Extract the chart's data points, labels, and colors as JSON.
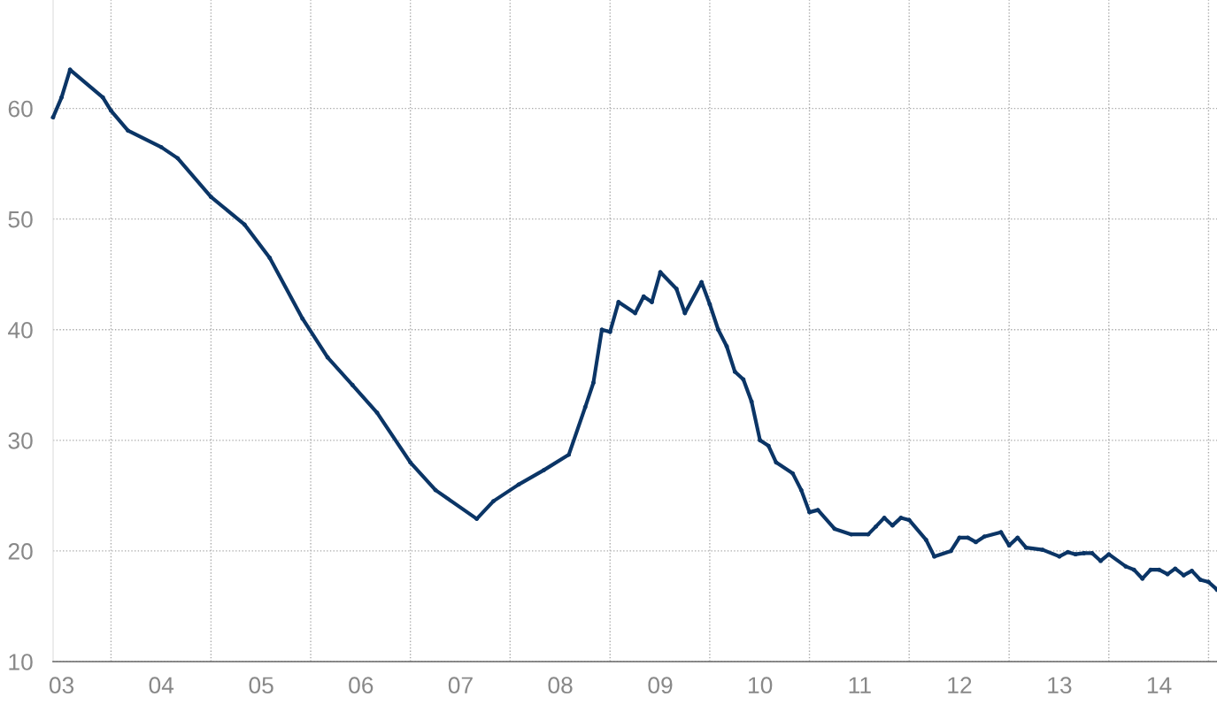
{
  "chart_data": {
    "type": "line",
    "x": [
      "2002-12",
      "2003-01",
      "2003-02",
      "2003-06",
      "2003-07",
      "2003-09",
      "2004-01",
      "2004-03",
      "2004-07",
      "2004-11",
      "2005-02",
      "2005-06",
      "2005-09",
      "2005-12",
      "2006-03",
      "2006-07",
      "2006-10",
      "2007-03",
      "2007-05",
      "2007-08",
      "2007-11",
      "2008-02",
      "2008-04",
      "2008-05",
      "2008-06",
      "2008-07",
      "2008-08",
      "2008-10",
      "2008-11",
      "2008-12",
      "2009-01",
      "2009-03",
      "2009-04",
      "2009-06",
      "2009-07",
      "2009-08",
      "2009-09",
      "2009-10",
      "2009-11",
      "2009-12",
      "2010-01",
      "2010-02",
      "2010-03",
      "2010-05",
      "2010-06",
      "2010-07",
      "2010-08",
      "2010-10",
      "2010-12",
      "2011-02",
      "2011-03",
      "2011-04",
      "2011-05",
      "2011-06",
      "2011-07",
      "2011-09",
      "2011-10",
      "2011-12",
      "2012-01",
      "2012-02",
      "2012-03",
      "2012-04",
      "2012-06",
      "2012-07",
      "2012-08",
      "2012-09",
      "2012-11",
      "2013-01",
      "2013-02",
      "2013-03",
      "2013-04",
      "2013-05",
      "2013-06",
      "2013-07",
      "2013-09",
      "2013-10",
      "2013-11",
      "2013-12",
      "2014-01",
      "2014-02",
      "2014-03",
      "2014-04",
      "2014-05",
      "2014-06",
      "2014-07",
      "2014-08"
    ],
    "series": [
      {
        "color": "#0b3566",
        "values": [
          59.2,
          61,
          63.5,
          61,
          59.8,
          58,
          56.5,
          55.5,
          52,
          49.5,
          46.5,
          41,
          37.5,
          35,
          32.5,
          28,
          25.5,
          22.9,
          24.5,
          26,
          27.3,
          28.7,
          33,
          35.2,
          40,
          39.8,
          42.5,
          41.5,
          43,
          42.5,
          45.2,
          43.7,
          41.5,
          44.3,
          42.3,
          40,
          38.5,
          36.2,
          35.5,
          33.5,
          30,
          29.5,
          28,
          27,
          25.5,
          23.5,
          23.7,
          22,
          21.5,
          21.5,
          22.2,
          23,
          22.3,
          23,
          22.8,
          21,
          19.5,
          20,
          21.2,
          21.2,
          20.8,
          21.3,
          21.7,
          20.5,
          21.2,
          20.3,
          20.1,
          19.5,
          19.9,
          19.7,
          19.8,
          19.8,
          19.1,
          19.7,
          18.6,
          18.3,
          17.5,
          18.3,
          18.3,
          17.9,
          18.4,
          17.8,
          18.2,
          17.4,
          17.2,
          16.5
        ]
      }
    ],
    "xlim": [
      "2002-12",
      "2014-08"
    ],
    "xticks": [
      {
        "value": "2003",
        "label": "03"
      },
      {
        "value": "2004",
        "label": "04"
      },
      {
        "value": "2005",
        "label": "05"
      },
      {
        "value": "2006",
        "label": "06"
      },
      {
        "value": "2007",
        "label": "07"
      },
      {
        "value": "2008",
        "label": "08"
      },
      {
        "value": "2009",
        "label": "09"
      },
      {
        "value": "2010",
        "label": "10"
      },
      {
        "value": "2011",
        "label": "11"
      },
      {
        "value": "2012",
        "label": "12"
      },
      {
        "value": "2013",
        "label": "13"
      },
      {
        "value": "2014",
        "label": "14"
      },
      {
        "value": "2003-07",
        "label": null
      },
      {
        "value": "2004-07",
        "label": null
      },
      {
        "value": "2005-07",
        "label": null
      },
      {
        "value": "2006-07",
        "label": null
      },
      {
        "value": "2007-07",
        "label": null
      },
      {
        "value": "2008-07",
        "label": null
      },
      {
        "value": "2009-07",
        "label": null
      },
      {
        "value": "2010-07",
        "label": null
      },
      {
        "value": "2011-07",
        "label": null
      },
      {
        "value": "2012-07",
        "label": null
      },
      {
        "value": "2013-07",
        "label": null
      },
      {
        "value": "2014-07",
        "label": null
      }
    ],
    "ylim": [
      10,
      69.8
    ],
    "yticks": [
      10,
      20,
      30,
      40,
      50,
      60
    ],
    "grid": true,
    "marker": "circle",
    "line_style": "solid"
  }
}
